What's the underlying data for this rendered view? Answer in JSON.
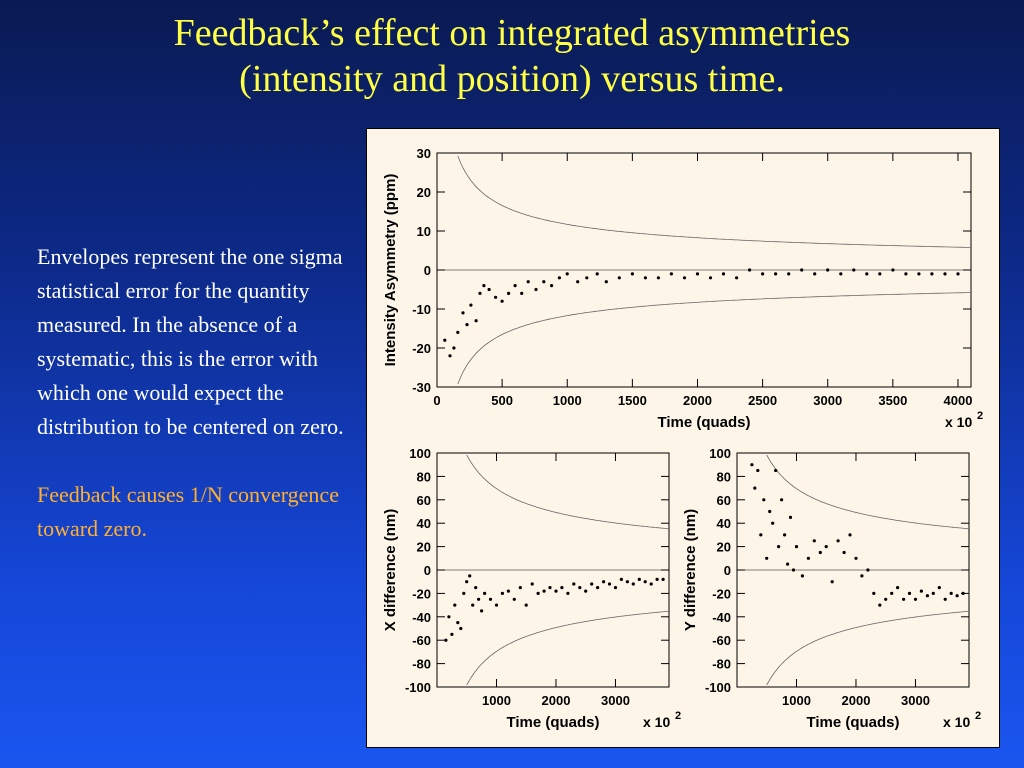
{
  "slide": {
    "title_line1": "Feedback’s effect on integrated asymmetries",
    "title_line2": "(intensity and position) versus time.",
    "note1": "Envelopes represent the one sigma statistical error for the quantity measured. In the absence of a systematic, this is the error with which one would expect the distribution to be centered on zero.",
    "note2": "Feedback causes 1/N convergence toward zero.",
    "colors": {
      "title": "#ffff44",
      "note1": "#ffffff",
      "note2": "#ffb030",
      "panel_bg": "#fdf6e8"
    }
  },
  "chart_data": [
    {
      "id": "intensity",
      "type": "scatter",
      "ylabel": "Intensity Asymmetry (ppm)",
      "xlabel": "Time (quads)",
      "x_multiplier": "x 10",
      "x_multiplier_exp": "2",
      "xlim": [
        0,
        4100
      ],
      "ylim": [
        -30,
        30
      ],
      "xticks": [
        0,
        500,
        1000,
        1500,
        2000,
        2500,
        3000,
        3500,
        4000
      ],
      "yticks": [
        -30,
        -20,
        -10,
        0,
        10,
        20,
        30
      ],
      "envelope_coeff": 370,
      "envelope": "1/sqrt(N)",
      "series": [
        {
          "x": [
            60,
            100,
            130,
            160,
            200,
            230,
            260,
            300,
            330,
            360,
            400,
            450,
            500,
            550,
            600,
            650,
            700,
            760,
            820,
            880,
            940,
            1000,
            1080,
            1150,
            1230,
            1300,
            1400,
            1500,
            1600,
            1700,
            1800,
            1900,
            2000,
            2100,
            2200,
            2300,
            2400,
            2500,
            2600,
            2700,
            2800,
            2900,
            3000,
            3100,
            3200,
            3300,
            3400,
            3500,
            3600,
            3700,
            3800,
            3900,
            4000
          ],
          "y": [
            -18,
            -22,
            -20,
            -16,
            -11,
            -14,
            -9,
            -13,
            -6,
            -4,
            -5,
            -7,
            -8,
            -6,
            -4,
            -6,
            -3,
            -5,
            -3,
            -4,
            -2,
            -1,
            -3,
            -2,
            -1,
            -3,
            -2,
            -1,
            -2,
            -2,
            -1,
            -2,
            -1,
            -2,
            -1,
            -2,
            0,
            -1,
            -1,
            -1,
            0,
            -1,
            0,
            -1,
            0,
            -1,
            -1,
            0,
            -1,
            -1,
            -1,
            -1,
            -1
          ]
        }
      ]
    },
    {
      "id": "x-difference",
      "type": "scatter",
      "ylabel": "X difference (nm)",
      "xlabel": "Time (quads)",
      "x_multiplier": "x 10",
      "x_multiplier_exp": "2",
      "xlim": [
        0,
        3900
      ],
      "ylim": [
        -100,
        100
      ],
      "xticks": [
        1000,
        2000,
        3000
      ],
      "yticks": [
        -100,
        -80,
        -60,
        -40,
        -20,
        0,
        20,
        40,
        60,
        80,
        100
      ],
      "envelope_coeff": 2200,
      "envelope": "1/sqrt(N)",
      "series": [
        {
          "x": [
            150,
            200,
            250,
            300,
            350,
            400,
            450,
            500,
            550,
            600,
            650,
            700,
            750,
            800,
            900,
            1000,
            1100,
            1200,
            1300,
            1400,
            1500,
            1600,
            1700,
            1800,
            1900,
            2000,
            2100,
            2200,
            2300,
            2400,
            2500,
            2600,
            2700,
            2800,
            2900,
            3000,
            3100,
            3200,
            3300,
            3400,
            3500,
            3600,
            3700,
            3800
          ],
          "y": [
            -60,
            -40,
            -55,
            -30,
            -45,
            -50,
            -20,
            -10,
            -5,
            -30,
            -15,
            -25,
            -35,
            -20,
            -25,
            -30,
            -20,
            -18,
            -25,
            -15,
            -30,
            -12,
            -20,
            -18,
            -15,
            -18,
            -15,
            -20,
            -12,
            -15,
            -18,
            -12,
            -15,
            -10,
            -12,
            -15,
            -8,
            -10,
            -12,
            -8,
            -10,
            -12,
            -8,
            -8
          ]
        }
      ]
    },
    {
      "id": "y-difference",
      "type": "scatter",
      "ylabel": "Y difference (nm)",
      "xlabel": "Time (quads)",
      "x_multiplier": "x 10",
      "x_multiplier_exp": "2",
      "xlim": [
        0,
        3900
      ],
      "ylim": [
        -100,
        100
      ],
      "xticks": [
        1000,
        2000,
        3000
      ],
      "yticks": [
        -100,
        -80,
        -60,
        -40,
        -20,
        0,
        20,
        40,
        60,
        80,
        100
      ],
      "envelope_coeff": 2200,
      "envelope": "1/sqrt(N)",
      "series": [
        {
          "x": [
            250,
            300,
            350,
            400,
            450,
            500,
            550,
            600,
            650,
            700,
            750,
            800,
            850,
            900,
            950,
            1000,
            1100,
            1200,
            1300,
            1400,
            1500,
            1600,
            1700,
            1800,
            1900,
            2000,
            2100,
            2200,
            2300,
            2400,
            2500,
            2600,
            2700,
            2800,
            2900,
            3000,
            3100,
            3200,
            3300,
            3400,
            3500,
            3600,
            3700,
            3800
          ],
          "y": [
            90,
            70,
            85,
            30,
            60,
            10,
            50,
            40,
            85,
            20,
            60,
            30,
            5,
            45,
            0,
            20,
            -5,
            10,
            25,
            15,
            20,
            -10,
            25,
            15,
            30,
            10,
            -5,
            0,
            -20,
            -30,
            -25,
            -20,
            -15,
            -25,
            -20,
            -25,
            -18,
            -22,
            -20,
            -15,
            -25,
            -20,
            -22,
            -20
          ]
        }
      ]
    }
  ]
}
